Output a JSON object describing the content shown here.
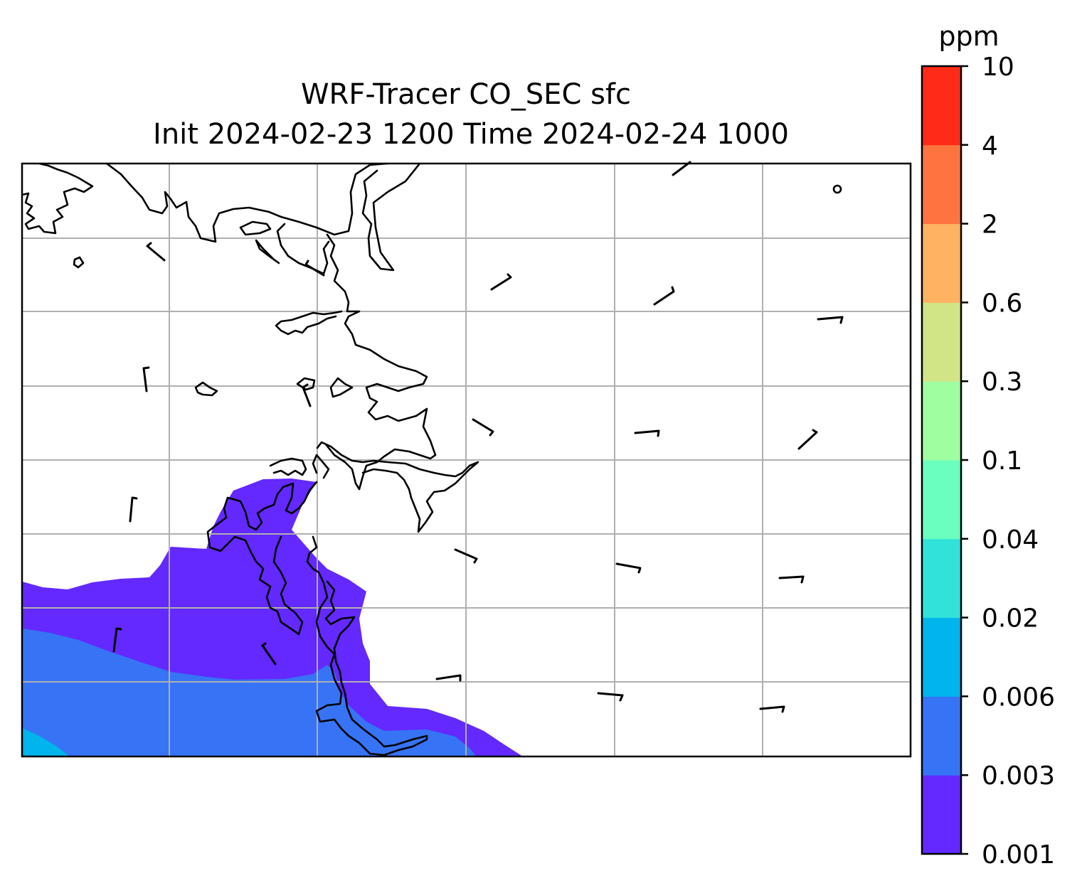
{
  "title": {
    "line1": "WRF-Tracer CO_SEC sfc",
    "line2": "Init 2024-02-23 1200 Time 2024-02-24 1000"
  },
  "colorbar": {
    "units": "ppm",
    "levels": [
      "0.001",
      "0.003",
      "0.006",
      "0.02",
      "0.04",
      "0.1",
      "0.3",
      "0.6",
      "2",
      "4",
      "10"
    ],
    "colors": [
      "#6329ff",
      "#3674f5",
      "#00b4ec",
      "#31e2d8",
      "#6affbf",
      "#9dffa0",
      "#d1e486",
      "#ffb262",
      "#ff743e",
      "#ff2a17"
    ]
  },
  "chart_data": {
    "type": "heatmap",
    "variable": "CO_SEC",
    "level": "sfc",
    "units": "ppm",
    "init_time": "2024-02-23 1200",
    "valid_time": "2024-02-24 1000",
    "contour_levels": [
      0.001,
      0.003,
      0.006,
      0.02,
      0.04,
      0.1,
      0.3,
      0.6,
      2,
      4,
      10
    ],
    "filled_regions": [
      {
        "range": [
          0.001,
          0.003
        ],
        "location": "south-west quadrant and south-central coast"
      },
      {
        "range": [
          0.003,
          0.006
        ],
        "location": "south-west corner band"
      },
      {
        "range": [
          0.006,
          0.02
        ],
        "location": "extreme south-west corner"
      }
    ],
    "grid": true,
    "wind_barbs": true,
    "coastlines": true
  }
}
